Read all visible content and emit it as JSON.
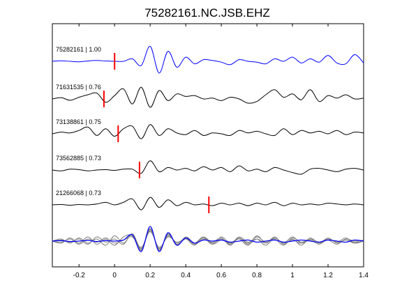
{
  "chart_data": {
    "type": "line",
    "title": "75282161.NC.JSB.EHZ",
    "xlabel": "",
    "ylabel": "",
    "xlim": [
      -0.35,
      1.4
    ],
    "xticks": [
      "-0.2",
      "0",
      "0.2",
      "0.4",
      "0.6",
      "0.8",
      "1",
      "1.2",
      "1.4"
    ],
    "xtick_values": [
      -0.2,
      0,
      0.2,
      0.4,
      0.6,
      0.8,
      1.0,
      1.2,
      1.4
    ],
    "grid": false,
    "colors": {
      "reference": "#0000ff",
      "trace": "#000000",
      "stack": "#808080",
      "pick": "#ff0000"
    },
    "series": [
      {
        "name": "75282161 | 1.00",
        "pick": 0.0,
        "x": [
          -0.35,
          -0.3,
          -0.25,
          -0.2,
          -0.15,
          -0.1,
          -0.05,
          0.0,
          0.05,
          0.1,
          0.15,
          0.2,
          0.25,
          0.3,
          0.35,
          0.4,
          0.45,
          0.5,
          0.55,
          0.6,
          0.65,
          0.7,
          0.75,
          0.8,
          0.85,
          0.9,
          0.95,
          1.0,
          1.05,
          1.1,
          1.15,
          1.2,
          1.25,
          1.3,
          1.35,
          1.4
        ],
        "y": [
          0.0,
          0.03,
          0.0,
          -0.03,
          0.02,
          0.05,
          0.02,
          0.0,
          0.0,
          0.15,
          -0.25,
          0.9,
          -0.7,
          0.6,
          -0.35,
          0.25,
          -0.15,
          0.1,
          0.05,
          -0.05,
          -0.2,
          0.1,
          0.0,
          -0.05,
          -0.15,
          0.15,
          0.0,
          0.25,
          -0.1,
          0.15,
          -0.05,
          0.35,
          -0.1,
          -0.15,
          0.4,
          -0.1
        ]
      },
      {
        "name": "71631535 | 0.76",
        "pick": -0.06,
        "x": [
          -0.35,
          -0.3,
          -0.25,
          -0.2,
          -0.15,
          -0.1,
          -0.05,
          0.0,
          0.05,
          0.1,
          0.15,
          0.2,
          0.25,
          0.3,
          0.35,
          0.4,
          0.45,
          0.5,
          0.55,
          0.6,
          0.65,
          0.7,
          0.75,
          0.8,
          0.85,
          0.9,
          0.95,
          1.0,
          1.05,
          1.1,
          1.15,
          1.2,
          1.25,
          1.3,
          1.35,
          1.4
        ],
        "y": [
          0.0,
          0.08,
          -0.08,
          0.1,
          0.25,
          0.35,
          -0.2,
          0.2,
          0.6,
          -0.3,
          0.7,
          -0.5,
          0.5,
          -0.1,
          0.3,
          0.15,
          0.2,
          0.0,
          0.05,
          -0.1,
          0.1,
          0.0,
          -0.25,
          -0.15,
          0.25,
          0.55,
          0.1,
          0.3,
          -0.05,
          0.55,
          -0.15,
          0.2,
          0.05,
          0.25,
          0.0,
          0.05
        ]
      },
      {
        "name": "73138861 | 0.75",
        "pick": 0.02,
        "x": [
          -0.35,
          -0.3,
          -0.25,
          -0.2,
          -0.15,
          -0.1,
          -0.05,
          0.0,
          0.05,
          0.1,
          0.15,
          0.2,
          0.25,
          0.3,
          0.35,
          0.4,
          0.45,
          0.5,
          0.55,
          0.6,
          0.65,
          0.7,
          0.75,
          0.8,
          0.85,
          0.9,
          0.95,
          1.0,
          1.05,
          1.1,
          1.15,
          1.2,
          1.25,
          1.3,
          1.35,
          1.4
        ],
        "y": [
          0.0,
          0.1,
          0.05,
          0.2,
          0.4,
          -0.1,
          0.3,
          -0.15,
          0.3,
          0.45,
          -0.3,
          0.55,
          -0.1,
          0.3,
          0.05,
          -0.05,
          0.2,
          -0.1,
          0.05,
          0.0,
          -0.1,
          0.2,
          0.05,
          0.15,
          0.0,
          -0.1,
          0.3,
          -0.05,
          0.2,
          0.05,
          0.15,
          0.0,
          0.2,
          -0.05,
          0.1,
          0.05
        ]
      },
      {
        "name": "73562885 | 0.73",
        "pick": 0.14,
        "x": [
          -0.35,
          -0.3,
          -0.25,
          -0.2,
          -0.15,
          -0.1,
          -0.05,
          0.0,
          0.05,
          0.1,
          0.15,
          0.2,
          0.25,
          0.3,
          0.35,
          0.4,
          0.45,
          0.5,
          0.55,
          0.6,
          0.65,
          0.7,
          0.75,
          0.8,
          0.85,
          0.9,
          0.95,
          1.0,
          1.05,
          1.1,
          1.15,
          1.2,
          1.25,
          1.3,
          1.35,
          1.4
        ],
        "y": [
          0.0,
          -0.05,
          0.05,
          0.02,
          -0.05,
          0.0,
          0.02,
          -0.02,
          0.05,
          0.05,
          -0.2,
          0.55,
          -0.1,
          0.15,
          0.0,
          0.1,
          -0.05,
          0.2,
          0.0,
          0.15,
          -0.1,
          0.25,
          -0.05,
          0.05,
          -0.1,
          0.15,
          0.0,
          -0.15,
          -0.25,
          0.05,
          0.1,
          0.0,
          -0.1,
          0.05,
          0.1,
          0.0
        ]
      },
      {
        "name": "21266068 | 0.73",
        "pick": 0.53,
        "x": [
          -0.35,
          -0.3,
          -0.25,
          -0.2,
          -0.15,
          -0.1,
          -0.05,
          0.0,
          0.05,
          0.1,
          0.15,
          0.2,
          0.25,
          0.3,
          0.35,
          0.4,
          0.45,
          0.5,
          0.55,
          0.6,
          0.65,
          0.7,
          0.75,
          0.8,
          0.85,
          0.9,
          0.95,
          1.0,
          1.05,
          1.1,
          1.15,
          1.2,
          1.25,
          1.3,
          1.35,
          1.4
        ],
        "y": [
          0.0,
          0.02,
          -0.02,
          0.02,
          0.0,
          0.05,
          0.15,
          0.0,
          0.15,
          0.35,
          -0.3,
          0.45,
          -0.15,
          0.3,
          -0.05,
          0.15,
          0.0,
          0.05,
          -0.05,
          0.1,
          0.0,
          0.1,
          -0.05,
          0.1,
          0.0,
          0.15,
          -0.05,
          0.1,
          0.0,
          0.05,
          0.0,
          0.1,
          0.05,
          0.0,
          0.05,
          0.0
        ]
      }
    ],
    "overlay": {
      "x": [
        -0.35,
        -0.3,
        -0.25,
        -0.2,
        -0.15,
        -0.1,
        -0.05,
        0.0,
        0.05,
        0.1,
        0.15,
        0.2,
        0.25,
        0.3,
        0.35,
        0.4,
        0.45,
        0.5,
        0.55,
        0.6,
        0.65,
        0.7,
        0.75,
        0.8,
        0.85,
        0.9,
        0.95,
        1.0,
        1.05,
        1.1,
        1.15,
        1.2,
        1.25,
        1.3,
        1.35,
        1.4
      ],
      "reference": [
        0.0,
        0.02,
        -0.02,
        0.0,
        0.03,
        -0.02,
        0.02,
        0.0,
        0.05,
        0.3,
        -0.5,
        0.7,
        -0.5,
        0.4,
        -0.2,
        0.15,
        -0.1,
        0.05,
        0.0,
        0.05,
        -0.05,
        0.0,
        0.05,
        -0.05,
        0.0,
        0.05,
        -0.05,
        0.0,
        0.05,
        0.0,
        -0.05,
        0.05,
        0.0,
        -0.05,
        0.05,
        0.0
      ],
      "stack": [
        [
          0.0,
          0.1,
          -0.1,
          0.15,
          -0.1,
          0.1,
          -0.2,
          0.25,
          -0.1,
          0.3,
          -0.4,
          0.6,
          -0.45,
          0.35,
          -0.2,
          0.2,
          -0.1,
          0.15,
          -0.15,
          0.2,
          -0.1,
          0.1,
          -0.2,
          0.25,
          -0.1,
          0.2,
          -0.15,
          0.1,
          -0.2,
          0.15,
          -0.1,
          0.15,
          -0.1,
          0.05,
          -0.1,
          0.05
        ],
        [
          0.0,
          -0.1,
          0.15,
          -0.1,
          0.2,
          -0.15,
          0.1,
          -0.2,
          0.2,
          0.25,
          -0.45,
          0.55,
          -0.4,
          0.3,
          -0.15,
          0.1,
          -0.2,
          0.2,
          -0.1,
          0.1,
          -0.15,
          0.2,
          -0.05,
          0.1,
          -0.2,
          0.15,
          -0.1,
          0.2,
          -0.1,
          0.05,
          -0.15,
          0.1,
          -0.05,
          0.15,
          -0.1,
          0.0
        ],
        [
          0.0,
          0.05,
          -0.05,
          0.1,
          -0.15,
          0.2,
          -0.05,
          0.1,
          -0.15,
          0.35,
          -0.35,
          0.5,
          -0.35,
          0.25,
          -0.1,
          0.15,
          -0.15,
          0.1,
          -0.05,
          0.15,
          -0.2,
          0.15,
          -0.1,
          0.2,
          -0.05,
          0.1,
          -0.2,
          0.15,
          -0.05,
          0.1,
          -0.1,
          0.05,
          -0.15,
          0.1,
          0.0,
          0.05
        ],
        [
          0.0,
          -0.05,
          0.1,
          -0.15,
          0.1,
          -0.05,
          0.15,
          -0.1,
          0.05,
          0.2,
          -0.3,
          0.45,
          -0.3,
          0.2,
          -0.05,
          0.1,
          -0.1,
          0.2,
          -0.15,
          0.05,
          -0.1,
          0.15,
          -0.15,
          0.1,
          -0.1,
          0.15,
          -0.1,
          0.05,
          -0.1,
          0.1,
          -0.05,
          0.1,
          -0.05,
          0.05,
          -0.05,
          0.0
        ]
      ]
    }
  }
}
